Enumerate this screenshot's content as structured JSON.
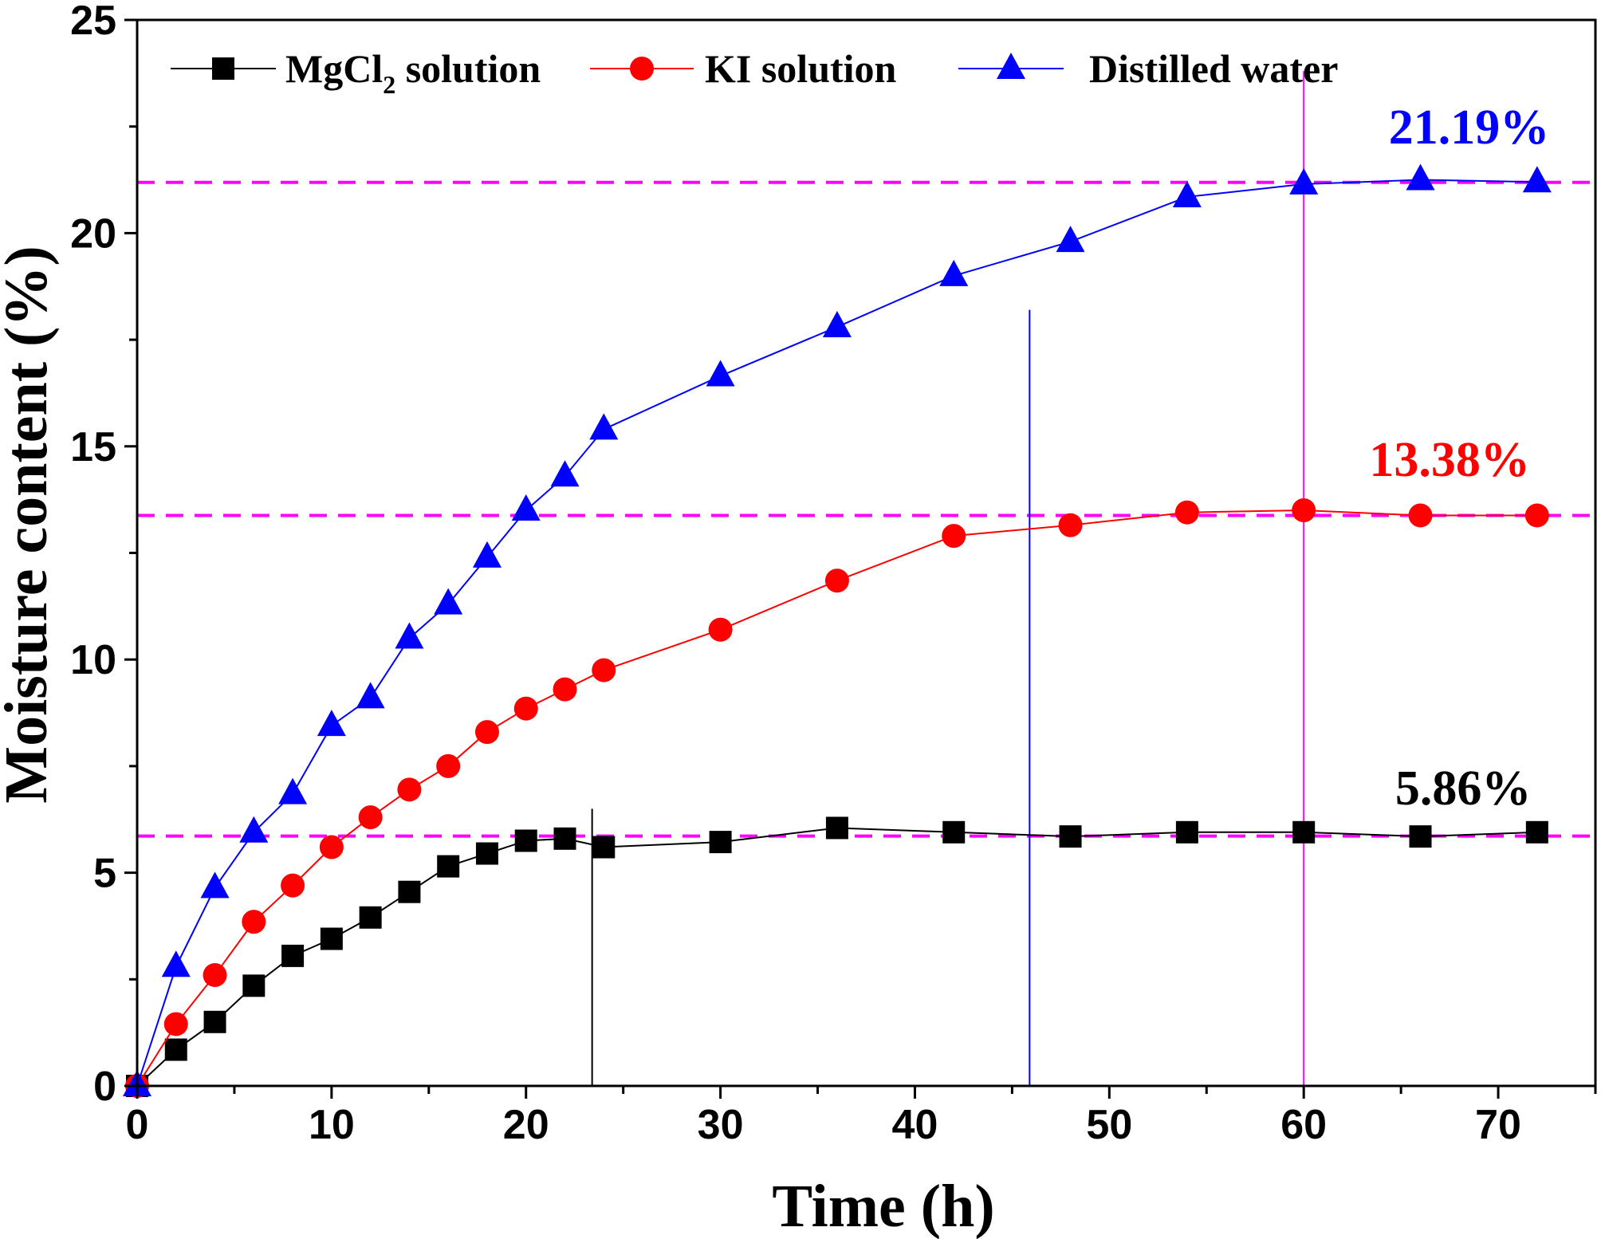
{
  "chart_data": {
    "type": "line",
    "xlabel": "Time (h)",
    "ylabel": "Moisture content (%)",
    "xlim": [
      0,
      75
    ],
    "ylim": [
      0,
      25
    ],
    "x_ticks": [
      "0",
      "10",
      "20",
      "30",
      "40",
      "50",
      "60",
      "70"
    ],
    "y_ticks": [
      "0",
      "5",
      "10",
      "15",
      "20",
      "25"
    ],
    "x": [
      0,
      2,
      4,
      6,
      8,
      10,
      12,
      14,
      16,
      18,
      20,
      22,
      24,
      30,
      36,
      42,
      48,
      54,
      60,
      66,
      72
    ],
    "series": [
      {
        "name": "MgCl2 solution",
        "legend_main": "MgCl",
        "legend_sub": "2",
        "legend_tail": " solution",
        "color": "#000000",
        "marker": "square",
        "values": [
          0,
          0.85,
          1.5,
          2.35,
          3.05,
          3.45,
          3.95,
          4.55,
          5.15,
          5.45,
          5.75,
          5.8,
          5.6,
          5.72,
          6.05,
          5.95,
          5.85,
          5.95,
          5.95,
          5.85,
          5.95
        ]
      },
      {
        "name": "KI solution",
        "legend_main": "KI   solution",
        "color": "#ff0000",
        "marker": "circle",
        "values": [
          0,
          1.45,
          2.6,
          3.85,
          4.7,
          5.6,
          6.3,
          6.95,
          7.5,
          8.3,
          8.85,
          9.3,
          9.75,
          10.7,
          11.85,
          12.9,
          13.15,
          13.45,
          13.5,
          13.38,
          13.38
        ]
      },
      {
        "name": "Distilled water",
        "legend_main": "Distilled water",
        "color": "#0000ff",
        "marker": "triangle",
        "values": [
          0,
          2.8,
          4.65,
          5.95,
          6.85,
          8.45,
          9.1,
          10.5,
          11.3,
          12.4,
          13.5,
          14.3,
          15.4,
          16.65,
          17.8,
          19.0,
          19.8,
          20.85,
          21.15,
          21.25,
          21.2
        ]
      }
    ],
    "reference_lines": [
      {
        "type": "horizontal",
        "y": 21.19,
        "color": "#ff00ff",
        "style": "dashed"
      },
      {
        "type": "horizontal",
        "y": 13.38,
        "color": "#ff00ff",
        "style": "dashed"
      },
      {
        "type": "horizontal",
        "y": 5.86,
        "color": "#ff00ff",
        "style": "dashed"
      },
      {
        "type": "vertical",
        "x": 23.4,
        "y_top": 6.5,
        "color": "#000000"
      },
      {
        "type": "vertical",
        "x": 45.9,
        "y_top": 18.2,
        "color": "#0000ff"
      },
      {
        "type": "vertical",
        "x": 60,
        "y_top": 23.8,
        "color": "#ff00ff"
      }
    ],
    "annotations": [
      {
        "text": "21.19%",
        "x": 68.5,
        "y": 22.1,
        "color": "#0000ff"
      },
      {
        "text": "13.38%",
        "x": 67.5,
        "y": 14.3,
        "color": "#ff0000"
      },
      {
        "text": "5.86%",
        "x": 68.2,
        "y": 6.6,
        "color": "#000000"
      }
    ],
    "legend_position": "top"
  }
}
